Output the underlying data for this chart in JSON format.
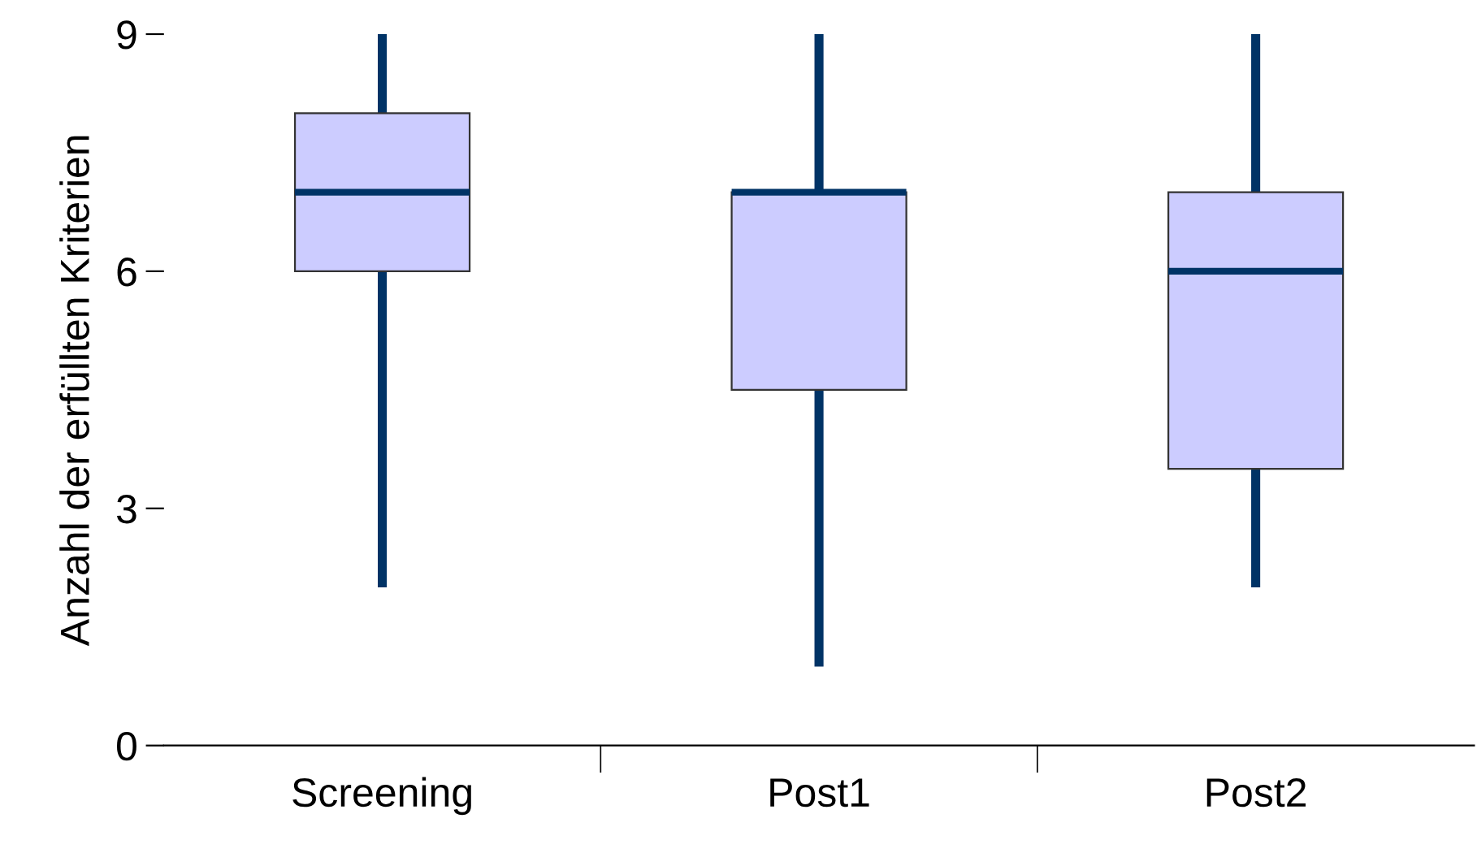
{
  "chart_data": {
    "type": "box",
    "ylabel": "Anzahl der erfüllten Kriterien",
    "categories": [
      "Screening",
      "Post1",
      "Post2"
    ],
    "boxes": [
      {
        "low": 2,
        "q1": 6,
        "median": 7,
        "q3": 8,
        "high": 9
      },
      {
        "low": 1,
        "q1": 4.5,
        "median": 7,
        "q3": 7,
        "high": 9
      },
      {
        "low": 2,
        "q1": 3.5,
        "median": 6,
        "q3": 7,
        "high": 9
      }
    ],
    "color": "#ccccff",
    "ylim": [
      0,
      9
    ],
    "yticks": [
      0,
      3,
      6,
      9
    ],
    "grid": false,
    "legend": false
  }
}
